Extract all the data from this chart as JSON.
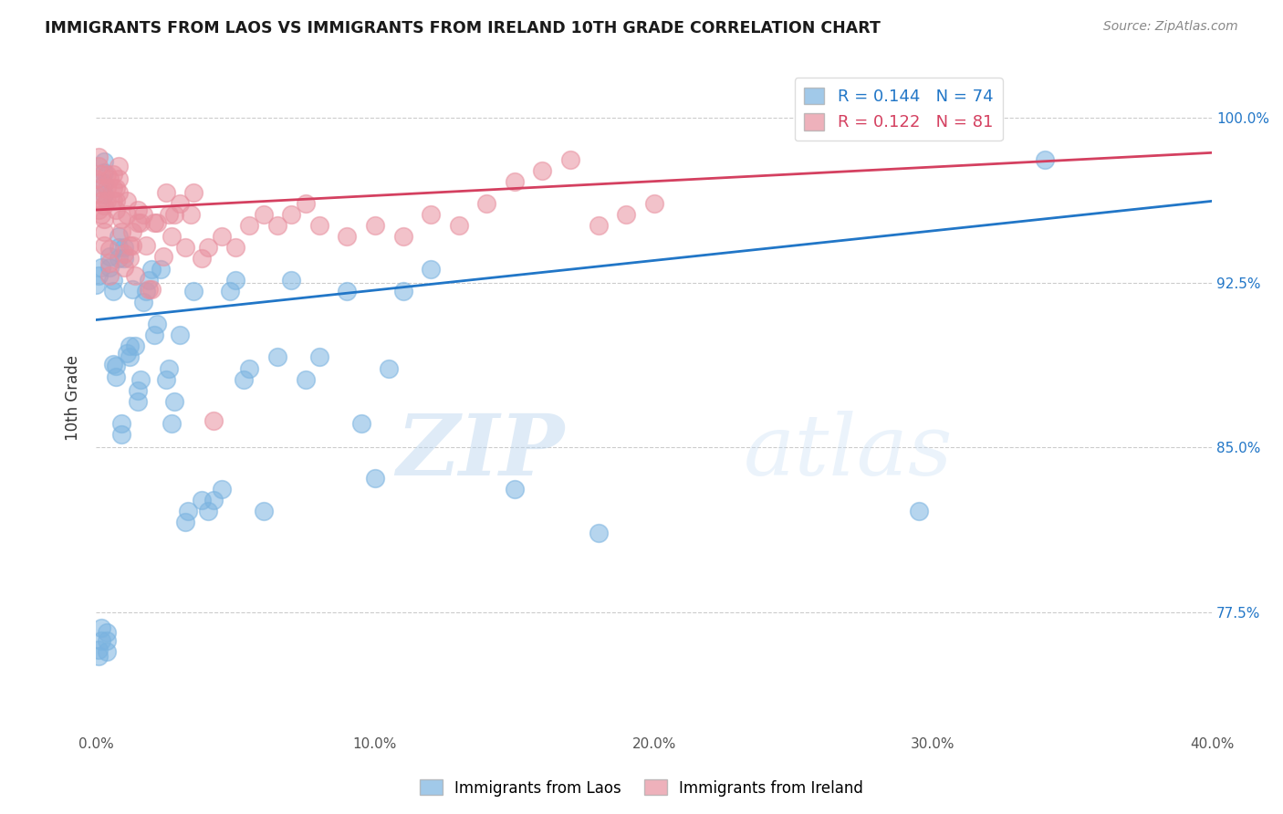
{
  "title": "IMMIGRANTS FROM LAOS VS IMMIGRANTS FROM IRELAND 10TH GRADE CORRELATION CHART",
  "source": "Source: ZipAtlas.com",
  "xlabel_ticks": [
    "0.0%",
    "10.0%",
    "20.0%",
    "30.0%",
    "40.0%"
  ],
  "xlabel_tick_vals": [
    0.0,
    0.1,
    0.2,
    0.3,
    0.4
  ],
  "ylabel_ticks": [
    "77.5%",
    "85.0%",
    "92.5%",
    "100.0%"
  ],
  "ylabel_tick_vals": [
    0.775,
    0.85,
    0.925,
    1.0
  ],
  "ylabel_label": "10th Grade",
  "xlim": [
    0.0,
    0.4
  ],
  "ylim": [
    0.72,
    1.025
  ],
  "laos_R": 0.144,
  "laos_N": 74,
  "ireland_R": 0.122,
  "ireland_N": 81,
  "laos_color": "#7ab3e0",
  "ireland_color": "#e8909f",
  "laos_line_color": "#2176c7",
  "ireland_line_color": "#d44060",
  "watermark_zip": "ZIP",
  "watermark_atlas": "atlas",
  "laos_points_x": [
    0.0,
    0.001,
    0.001,
    0.002,
    0.002,
    0.003,
    0.003,
    0.003,
    0.004,
    0.004,
    0.004,
    0.005,
    0.005,
    0.006,
    0.006,
    0.006,
    0.007,
    0.007,
    0.008,
    0.008,
    0.008,
    0.009,
    0.009,
    0.01,
    0.01,
    0.011,
    0.012,
    0.012,
    0.013,
    0.014,
    0.015,
    0.015,
    0.016,
    0.017,
    0.018,
    0.019,
    0.02,
    0.021,
    0.022,
    0.023,
    0.025,
    0.026,
    0.027,
    0.028,
    0.03,
    0.032,
    0.033,
    0.035,
    0.038,
    0.04,
    0.042,
    0.045,
    0.048,
    0.05,
    0.053,
    0.055,
    0.06,
    0.065,
    0.07,
    0.075,
    0.08,
    0.09,
    0.095,
    0.1,
    0.105,
    0.11,
    0.12,
    0.15,
    0.18,
    0.295,
    0.34,
    0.001,
    0.002,
    0.003
  ],
  "laos_points_y": [
    0.924,
    0.928,
    0.758,
    0.932,
    0.762,
    0.97,
    0.975,
    0.98,
    0.757,
    0.762,
    0.766,
    0.932,
    0.937,
    0.921,
    0.926,
    0.888,
    0.882,
    0.887,
    0.936,
    0.941,
    0.946,
    0.856,
    0.861,
    0.936,
    0.941,
    0.893,
    0.891,
    0.896,
    0.922,
    0.896,
    0.871,
    0.876,
    0.881,
    0.916,
    0.921,
    0.926,
    0.931,
    0.901,
    0.906,
    0.931,
    0.881,
    0.886,
    0.861,
    0.871,
    0.901,
    0.816,
    0.821,
    0.921,
    0.826,
    0.821,
    0.826,
    0.831,
    0.921,
    0.926,
    0.881,
    0.886,
    0.821,
    0.891,
    0.926,
    0.881,
    0.891,
    0.921,
    0.861,
    0.836,
    0.886,
    0.921,
    0.931,
    0.831,
    0.811,
    0.821,
    0.981,
    0.755,
    0.768,
    0.965
  ],
  "ireland_points_x": [
    0.0,
    0.0,
    0.001,
    0.001,
    0.001,
    0.002,
    0.002,
    0.002,
    0.002,
    0.003,
    0.003,
    0.003,
    0.003,
    0.004,
    0.004,
    0.004,
    0.005,
    0.005,
    0.005,
    0.005,
    0.006,
    0.006,
    0.006,
    0.007,
    0.007,
    0.007,
    0.008,
    0.008,
    0.008,
    0.009,
    0.009,
    0.01,
    0.01,
    0.011,
    0.011,
    0.012,
    0.012,
    0.013,
    0.013,
    0.014,
    0.015,
    0.015,
    0.016,
    0.017,
    0.018,
    0.019,
    0.02,
    0.021,
    0.022,
    0.024,
    0.025,
    0.026,
    0.027,
    0.028,
    0.03,
    0.032,
    0.034,
    0.035,
    0.038,
    0.04,
    0.042,
    0.045,
    0.05,
    0.055,
    0.06,
    0.065,
    0.07,
    0.075,
    0.08,
    0.09,
    0.1,
    0.11,
    0.12,
    0.13,
    0.14,
    0.15,
    0.16,
    0.17,
    0.18,
    0.19,
    0.2
  ],
  "ireland_points_y": [
    0.972,
    0.965,
    0.978,
    0.982,
    0.958,
    0.956,
    0.962,
    0.968,
    0.974,
    0.942,
    0.948,
    0.954,
    0.96,
    0.962,
    0.968,
    0.974,
    0.928,
    0.934,
    0.94,
    0.972,
    0.962,
    0.968,
    0.974,
    0.958,
    0.962,
    0.968,
    0.966,
    0.972,
    0.978,
    0.948,
    0.954,
    0.932,
    0.938,
    0.956,
    0.962,
    0.936,
    0.942,
    0.942,
    0.948,
    0.928,
    0.952,
    0.958,
    0.952,
    0.956,
    0.942,
    0.922,
    0.922,
    0.952,
    0.952,
    0.937,
    0.966,
    0.956,
    0.946,
    0.956,
    0.961,
    0.941,
    0.956,
    0.966,
    0.936,
    0.941,
    0.862,
    0.946,
    0.941,
    0.951,
    0.956,
    0.951,
    0.956,
    0.961,
    0.951,
    0.946,
    0.951,
    0.946,
    0.956,
    0.951,
    0.961,
    0.971,
    0.976,
    0.981,
    0.951,
    0.956,
    0.961
  ]
}
